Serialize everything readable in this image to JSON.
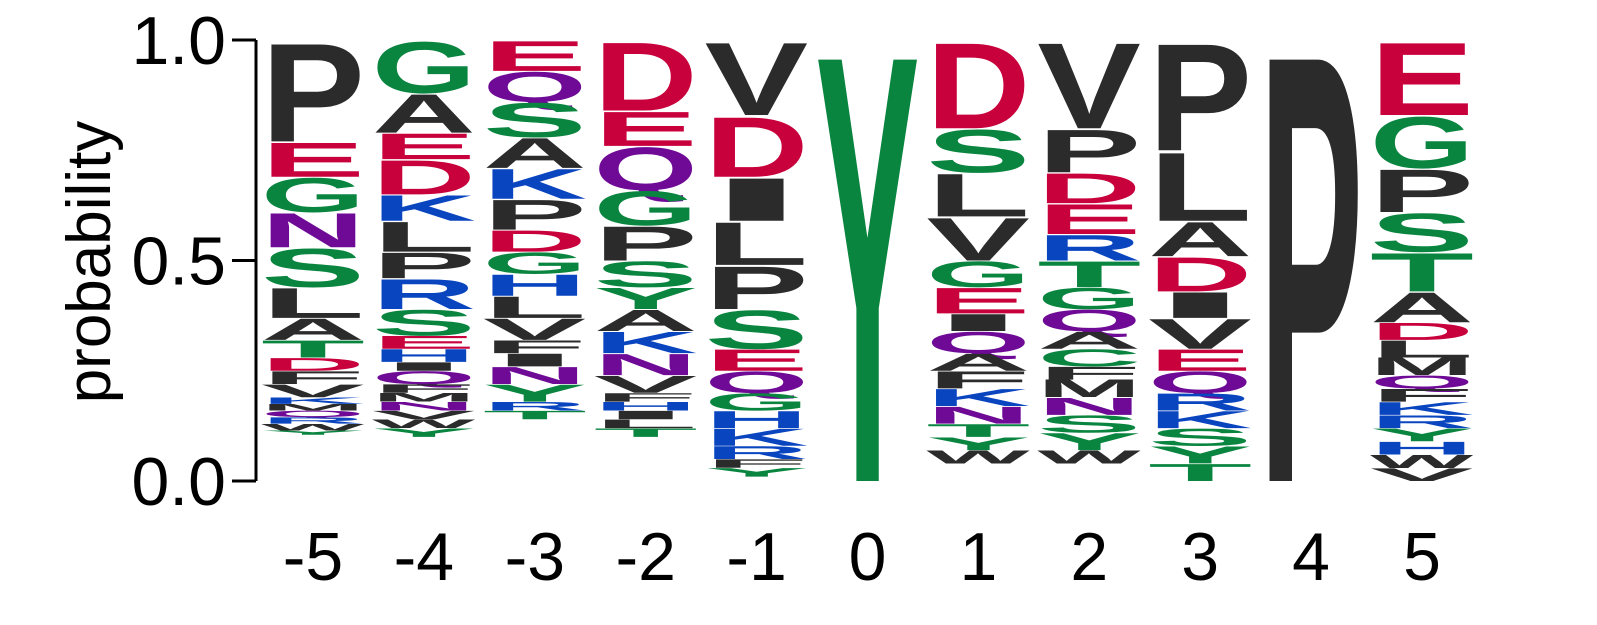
{
  "chart_data": {
    "type": "sequence-logo",
    "ylabel": "probability",
    "ylim": [
      0,
      1
    ],
    "y_ticks": [
      "0.0",
      "0.5",
      "1.0"
    ],
    "positions": [
      "-5",
      "-4",
      "-3",
      "-2",
      "-1",
      "0",
      "1",
      "2",
      "3",
      "4",
      "5"
    ],
    "colors": {
      "acidic": "#c8003c",
      "polar": "#0a8540",
      "hydrophobic": "#2b2b2b",
      "basic": "#0a45c0",
      "amide": "#6e0a96"
    },
    "color_classes": {
      "D": "acidic",
      "E": "acidic",
      "G": "polar",
      "S": "polar",
      "T": "polar",
      "Y": "polar",
      "C": "polar",
      "P": "hydrophobic",
      "A": "hydrophobic",
      "L": "hydrophobic",
      "V": "hydrophobic",
      "I": "hydrophobic",
      "F": "hydrophobic",
      "M": "hydrophobic",
      "W": "hydrophobic",
      "K": "basic",
      "R": "basic",
      "H": "basic",
      "N": "amide",
      "Q": "amide"
    },
    "columns": [
      {
        "position": "-5",
        "residues": [
          {
            "letter": "P",
            "p": 0.23
          },
          {
            "letter": "E",
            "p": 0.08
          },
          {
            "letter": "G",
            "p": 0.08
          },
          {
            "letter": "N",
            "p": 0.08
          },
          {
            "letter": "S",
            "p": 0.09
          },
          {
            "letter": "L",
            "p": 0.07
          },
          {
            "letter": "A",
            "p": 0.05
          },
          {
            "letter": "T",
            "p": 0.04
          },
          {
            "letter": "D",
            "p": 0.03
          },
          {
            "letter": "F",
            "p": 0.03
          },
          {
            "letter": "V",
            "p": 0.03
          },
          {
            "letter": "K",
            "p": 0.015
          },
          {
            "letter": "M",
            "p": 0.015
          },
          {
            "letter": "Q",
            "p": 0.015
          },
          {
            "letter": "R",
            "p": 0.015
          },
          {
            "letter": "W",
            "p": 0.015
          },
          {
            "letter": "Y",
            "p": 0.01
          }
        ]
      },
      {
        "position": "-4",
        "residues": [
          {
            "letter": "G",
            "p": 0.12
          },
          {
            "letter": "A",
            "p": 0.09
          },
          {
            "letter": "E",
            "p": 0.06
          },
          {
            "letter": "D",
            "p": 0.08
          },
          {
            "letter": "K",
            "p": 0.06
          },
          {
            "letter": "L",
            "p": 0.07
          },
          {
            "letter": "P",
            "p": 0.06
          },
          {
            "letter": "R",
            "p": 0.07
          },
          {
            "letter": "S",
            "p": 0.06
          },
          {
            "letter": "E",
            "p": 0.03
          },
          {
            "letter": "H",
            "p": 0.03
          },
          {
            "letter": "I",
            "p": 0.02
          },
          {
            "letter": "Q",
            "p": 0.03
          },
          {
            "letter": "F",
            "p": 0.02
          },
          {
            "letter": "M",
            "p": 0.02
          },
          {
            "letter": "N",
            "p": 0.02
          },
          {
            "letter": "V",
            "p": 0.02
          },
          {
            "letter": "W",
            "p": 0.02
          },
          {
            "letter": "Y",
            "p": 0.02
          }
        ]
      },
      {
        "position": "-3",
        "residues": [
          {
            "letter": "E",
            "p": 0.07
          },
          {
            "letter": "Q",
            "p": 0.07
          },
          {
            "letter": "S",
            "p": 0.08
          },
          {
            "letter": "A",
            "p": 0.07
          },
          {
            "letter": "K",
            "p": 0.07
          },
          {
            "letter": "P",
            "p": 0.07
          },
          {
            "letter": "D",
            "p": 0.05
          },
          {
            "letter": "G",
            "p": 0.05
          },
          {
            "letter": "H",
            "p": 0.05
          },
          {
            "letter": "L",
            "p": 0.05
          },
          {
            "letter": "V",
            "p": 0.05
          },
          {
            "letter": "F",
            "p": 0.03
          },
          {
            "letter": "I",
            "p": 0.03
          },
          {
            "letter": "N",
            "p": 0.04
          },
          {
            "letter": "Y",
            "p": 0.04
          },
          {
            "letter": "R",
            "p": 0.02
          },
          {
            "letter": "T",
            "p": 0.02
          }
        ]
      },
      {
        "position": "-2",
        "residues": [
          {
            "letter": "D",
            "p": 0.16
          },
          {
            "letter": "E",
            "p": 0.08
          },
          {
            "letter": "Q",
            "p": 0.1
          },
          {
            "letter": "G",
            "p": 0.08
          },
          {
            "letter": "P",
            "p": 0.08
          },
          {
            "letter": "S",
            "p": 0.06
          },
          {
            "letter": "Y",
            "p": 0.05
          },
          {
            "letter": "A",
            "p": 0.05
          },
          {
            "letter": "K",
            "p": 0.05
          },
          {
            "letter": "N",
            "p": 0.05
          },
          {
            "letter": "V",
            "p": 0.04
          },
          {
            "letter": "F",
            "p": 0.02
          },
          {
            "letter": "H",
            "p": 0.02
          },
          {
            "letter": "I",
            "p": 0.02
          },
          {
            "letter": "L",
            "p": 0.02
          },
          {
            "letter": "T",
            "p": 0.02
          }
        ]
      },
      {
        "position": "-1",
        "residues": [
          {
            "letter": "V",
            "p": 0.17
          },
          {
            "letter": "D",
            "p": 0.14
          },
          {
            "letter": "I",
            "p": 0.1
          },
          {
            "letter": "L",
            "p": 0.1
          },
          {
            "letter": "P",
            "p": 0.1
          },
          {
            "letter": "S",
            "p": 0.09
          },
          {
            "letter": "E",
            "p": 0.05
          },
          {
            "letter": "Q",
            "p": 0.05
          },
          {
            "letter": "G",
            "p": 0.04
          },
          {
            "letter": "H",
            "p": 0.04
          },
          {
            "letter": "K",
            "p": 0.04
          },
          {
            "letter": "R",
            "p": 0.03
          },
          {
            "letter": "F",
            "p": 0.02
          },
          {
            "letter": "Y",
            "p": 0.02
          }
        ]
      },
      {
        "position": "0",
        "residues": [
          {
            "letter": "Y",
            "p": 1.0
          }
        ]
      },
      {
        "position": "1",
        "residues": [
          {
            "letter": "D",
            "p": 0.2
          },
          {
            "letter": "S",
            "p": 0.1
          },
          {
            "letter": "L",
            "p": 0.1
          },
          {
            "letter": "V",
            "p": 0.1
          },
          {
            "letter": "G",
            "p": 0.06
          },
          {
            "letter": "E",
            "p": 0.06
          },
          {
            "letter": "I",
            "p": 0.04
          },
          {
            "letter": "Q",
            "p": 0.05
          },
          {
            "letter": "A",
            "p": 0.04
          },
          {
            "letter": "F",
            "p": 0.04
          },
          {
            "letter": "K",
            "p": 0.04
          },
          {
            "letter": "N",
            "p": 0.04
          },
          {
            "letter": "T",
            "p": 0.03
          },
          {
            "letter": "Y",
            "p": 0.03
          },
          {
            "letter": "W",
            "p": 0.03
          }
        ]
      },
      {
        "position": "2",
        "residues": [
          {
            "letter": "V",
            "p": 0.2
          },
          {
            "letter": "P",
            "p": 0.1
          },
          {
            "letter": "D",
            "p": 0.07
          },
          {
            "letter": "E",
            "p": 0.07
          },
          {
            "letter": "R",
            "p": 0.06
          },
          {
            "letter": "T",
            "p": 0.06
          },
          {
            "letter": "G",
            "p": 0.05
          },
          {
            "letter": "Q",
            "p": 0.05
          },
          {
            "letter": "A",
            "p": 0.04
          },
          {
            "letter": "C",
            "p": 0.04
          },
          {
            "letter": "F",
            "p": 0.03
          },
          {
            "letter": "M",
            "p": 0.04
          },
          {
            "letter": "N",
            "p": 0.04
          },
          {
            "letter": "S",
            "p": 0.04
          },
          {
            "letter": "Y",
            "p": 0.04
          },
          {
            "letter": "W",
            "p": 0.03
          }
        ]
      },
      {
        "position": "3",
        "residues": [
          {
            "letter": "P",
            "p": 0.25
          },
          {
            "letter": "L",
            "p": 0.16
          },
          {
            "letter": "A",
            "p": 0.08
          },
          {
            "letter": "D",
            "p": 0.08
          },
          {
            "letter": "I",
            "p": 0.06
          },
          {
            "letter": "V",
            "p": 0.07
          },
          {
            "letter": "E",
            "p": 0.05
          },
          {
            "letter": "Q",
            "p": 0.05
          },
          {
            "letter": "R",
            "p": 0.04
          },
          {
            "letter": "K",
            "p": 0.04
          },
          {
            "letter": "S",
            "p": 0.04
          },
          {
            "letter": "Y",
            "p": 0.04
          },
          {
            "letter": "T",
            "p": 0.04
          }
        ]
      },
      {
        "position": "4",
        "residues": [
          {
            "letter": "P",
            "p": 1.0
          }
        ]
      },
      {
        "position": "5",
        "residues": [
          {
            "letter": "E",
            "p": 0.17
          },
          {
            "letter": "G",
            "p": 0.12
          },
          {
            "letter": "P",
            "p": 0.1
          },
          {
            "letter": "S",
            "p": 0.09
          },
          {
            "letter": "T",
            "p": 0.09
          },
          {
            "letter": "A",
            "p": 0.07
          },
          {
            "letter": "D",
            "p": 0.04
          },
          {
            "letter": "L",
            "p": 0.04
          },
          {
            "letter": "M",
            "p": 0.04
          },
          {
            "letter": "Q",
            "p": 0.03
          },
          {
            "letter": "F",
            "p": 0.03
          },
          {
            "letter": "K",
            "p": 0.03
          },
          {
            "letter": "R",
            "p": 0.03
          },
          {
            "letter": "Y",
            "p": 0.03
          },
          {
            "letter": "H",
            "p": 0.03
          },
          {
            "letter": "W",
            "p": 0.03
          },
          {
            "letter": "V",
            "p": 0.03
          }
        ]
      }
    ]
  }
}
